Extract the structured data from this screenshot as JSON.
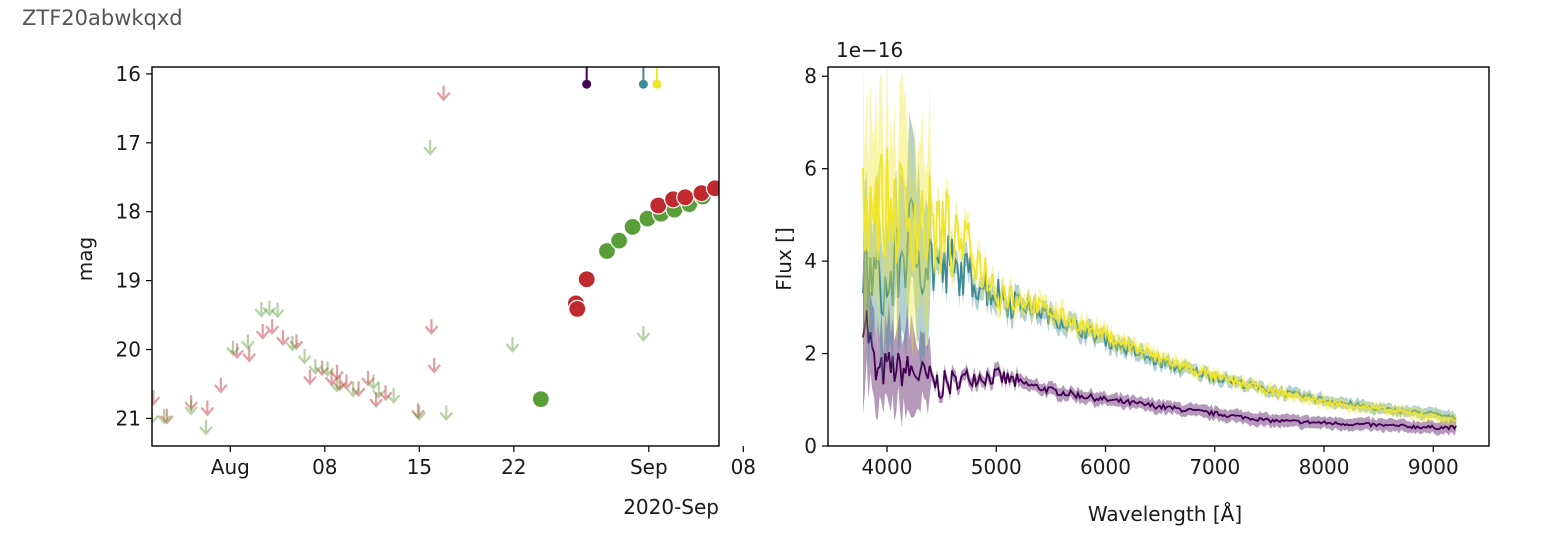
{
  "object_name": "ZTF20abwkqxd",
  "colors": {
    "ztf_g": "#5a9e3a",
    "ztf_r": "#c0292e",
    "spec_1": "#440154",
    "spec_2": "#3c8b96",
    "spec_3": "#f0e52a"
  },
  "chart_data": [
    {
      "type": "scatter",
      "title": "",
      "xlabel": "",
      "ylabel": "mag",
      "xlim_days": [
        -5.8,
        36.2
      ],
      "ylim": [
        21.4,
        15.9
      ],
      "x_ticks": [
        {
          "day": 0,
          "label": "Aug"
        },
        {
          "day": 7,
          "label": "08"
        },
        {
          "day": 14,
          "label": "15"
        },
        {
          "day": 21,
          "label": "22"
        },
        {
          "day": 31,
          "label": "Sep"
        },
        {
          "day": 38,
          "label": "08"
        }
      ],
      "x_offset_label": "2020-Sep",
      "y_ticks": [
        16,
        17,
        18,
        19,
        20,
        21
      ],
      "spectrum_epochs": [
        {
          "day": 26.4,
          "mag": 16.15,
          "color": "#440154"
        },
        {
          "day": 30.6,
          "mag": 16.15,
          "color": "#3c8b96"
        },
        {
          "day": 31.6,
          "mag": 16.15,
          "color": "#f0e52a"
        }
      ],
      "detections": [
        {
          "band": "g",
          "points": [
            [
              23.0,
              20.72
            ],
            [
              27.9,
              18.57
            ],
            [
              28.8,
              18.42
            ],
            [
              29.8,
              18.22
            ],
            [
              30.9,
              18.1
            ],
            [
              31.9,
              18.03
            ],
            [
              32.9,
              17.97
            ],
            [
              34.0,
              17.89
            ],
            [
              35.0,
              17.78
            ],
            [
              36.0,
              17.68
            ]
          ]
        },
        {
          "band": "r",
          "points": [
            [
              25.6,
              19.33
            ],
            [
              25.7,
              19.41
            ],
            [
              26.4,
              18.98
            ],
            [
              31.7,
              17.91
            ],
            [
              32.8,
              17.82
            ],
            [
              33.7,
              17.79
            ],
            [
              34.9,
              17.73
            ],
            [
              35.9,
              17.66
            ],
            [
              38.0,
              17.55
            ]
          ]
        }
      ],
      "upper_limits": [
        {
          "band": "r",
          "points": [
            [
              -5.7,
              20.75
            ],
            [
              -4.7,
              21.02
            ],
            [
              -2.9,
              20.82
            ],
            [
              -1.7,
              20.9
            ],
            [
              -0.7,
              20.57
            ],
            [
              0.5,
              20.07
            ],
            [
              1.4,
              20.12
            ],
            [
              2.4,
              19.79
            ],
            [
              3.1,
              19.72
            ],
            [
              3.9,
              19.88
            ],
            [
              4.9,
              19.94
            ],
            [
              5.9,
              20.45
            ],
            [
              6.8,
              20.32
            ],
            [
              7.5,
              20.46
            ],
            [
              7.9,
              20.38
            ],
            [
              8.1,
              20.54
            ],
            [
              8.6,
              20.52
            ],
            [
              9.5,
              20.62
            ],
            [
              10.2,
              20.47
            ],
            [
              10.8,
              20.78
            ],
            [
              11.5,
              20.68
            ],
            [
              13.9,
              20.94
            ],
            [
              14.9,
              19.72
            ],
            [
              15.1,
              20.28
            ],
            [
              15.8,
              16.33
            ]
          ]
        },
        {
          "band": "g",
          "points": [
            [
              -5.8,
              21.02
            ],
            [
              -4.9,
              21.02
            ],
            [
              -2.9,
              20.89
            ],
            [
              -1.8,
              21.18
            ],
            [
              0.2,
              20.03
            ],
            [
              1.3,
              19.94
            ],
            [
              2.3,
              19.47
            ],
            [
              2.9,
              19.45
            ],
            [
              3.5,
              19.48
            ],
            [
              4.6,
              19.96
            ],
            [
              5.5,
              20.15
            ],
            [
              6.3,
              20.3
            ],
            [
              7.2,
              20.33
            ],
            [
              7.9,
              20.56
            ],
            [
              9.1,
              20.63
            ],
            [
              10.6,
              20.52
            ],
            [
              11.0,
              20.65
            ],
            [
              12.1,
              20.72
            ],
            [
              14.0,
              20.97
            ],
            [
              14.8,
              17.12
            ],
            [
              16.0,
              20.97
            ],
            [
              20.9,
              19.98
            ],
            [
              30.6,
              19.82
            ]
          ]
        }
      ]
    },
    {
      "type": "line",
      "title": "",
      "xlabel": "Wavelength [Å]",
      "ylabel": "Flux []",
      "y_scale_label": "1e−16",
      "xlim": [
        3460,
        9510
      ],
      "ylim": [
        0,
        8.2
      ],
      "x_ticks": [
        4000,
        5000,
        6000,
        7000,
        8000,
        9000
      ],
      "y_ticks": [
        0,
        2,
        4,
        6,
        8
      ],
      "series": [
        {
          "name": "spectrum-1",
          "color": "#440154",
          "x": [
            3780,
            3900,
            4000,
            4250,
            4500,
            4750,
            5000,
            5500,
            6000,
            6500,
            7000,
            7500,
            8000,
            8500,
            9000,
            9210
          ],
          "values": [
            3.1,
            1.5,
            1.7,
            1.6,
            1.3,
            1.5,
            1.5,
            1.2,
            1.0,
            0.85,
            0.7,
            0.55,
            0.5,
            0.45,
            0.4,
            0.4
          ]
        },
        {
          "name": "spectrum-2",
          "color": "#3c8b96",
          "x": [
            3780,
            3900,
            4000,
            4200,
            4500,
            4750,
            5000,
            5500,
            6000,
            6500,
            7000,
            7500,
            8000,
            8500,
            9000,
            9210
          ],
          "values": [
            3.7,
            3.6,
            3.3,
            4.5,
            3.8,
            3.7,
            3.3,
            2.8,
            2.3,
            1.8,
            1.5,
            1.2,
            1.0,
            0.8,
            0.7,
            0.6
          ]
        },
        {
          "name": "spectrum-3",
          "color": "#f0e52a",
          "x": [
            3780,
            3900,
            4000,
            4200,
            4500,
            4750,
            5000,
            5500,
            6000,
            6500,
            7000,
            7500,
            8000,
            8500,
            9000,
            9210
          ],
          "values": [
            5.5,
            5.3,
            5.2,
            5.0,
            4.6,
            4.3,
            3.4,
            2.9,
            2.4,
            1.9,
            1.5,
            1.2,
            0.95,
            0.8,
            0.65,
            0.55
          ]
        }
      ]
    }
  ]
}
